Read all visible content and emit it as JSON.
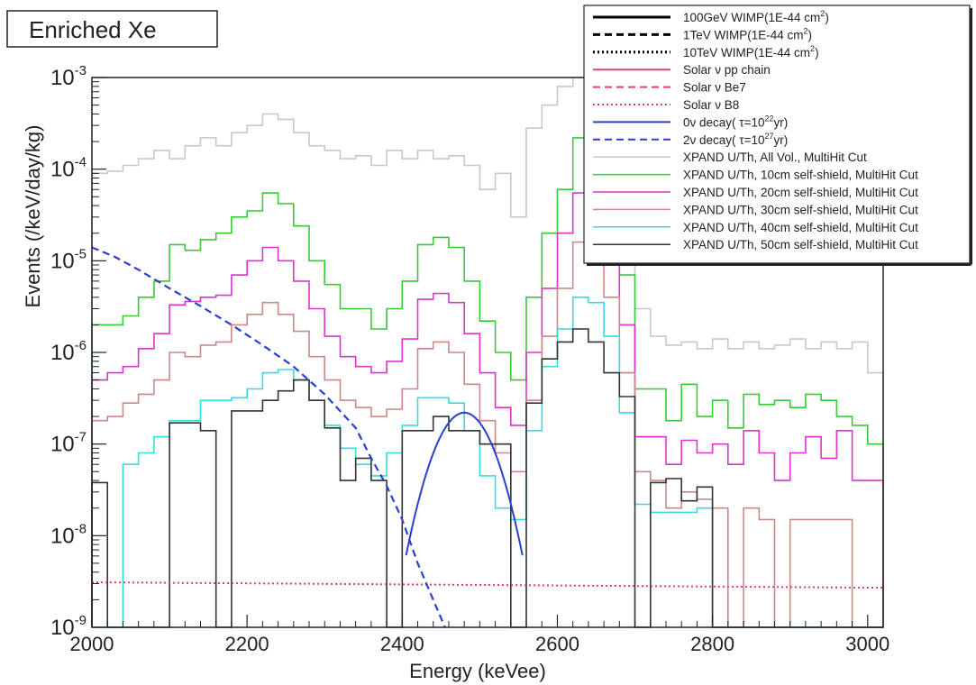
{
  "chart_data": {
    "type": "line",
    "title": "Enriched Xe",
    "xlabel": "Energy (keVee)",
    "ylabel": "Events (/keV/day/kg)",
    "xlim": [
      2000,
      3020
    ],
    "ylim": [
      1e-09,
      0.001
    ],
    "yscale": "log",
    "grid": false,
    "legend_position": "top-right",
    "x_ticks": [
      2000,
      2200,
      2400,
      2600,
      2800,
      3000
    ],
    "x_tick_labels": [
      "2000",
      "2200",
      "2400",
      "2600",
      "2800",
      "3000"
    ],
    "y_ticks": [
      1e-09,
      1e-08,
      1e-07,
      1e-06,
      1e-05,
      0.0001,
      0.001
    ],
    "y_tick_exponents": [
      "-9",
      "-8",
      "-7",
      "-6",
      "-5",
      "-4",
      "-3"
    ],
    "y_tick_base": "10",
    "legend": [
      {
        "label": "100GeV WIMP(1E-44 cm",
        "sup": "2",
        "tail": ")",
        "color": "#000000",
        "style": "solid",
        "width": 3
      },
      {
        "label": "1TeV WIMP(1E-44 cm",
        "sup": "2",
        "tail": ")",
        "color": "#000000",
        "style": "dashed",
        "width": 3
      },
      {
        "label": "10TeV WIMP(1E-44 cm",
        "sup": "2",
        "tail": ")",
        "color": "#000000",
        "style": "dotted",
        "width": 3
      },
      {
        "label": "Solar  ν pp chain",
        "sup": "",
        "tail": "",
        "color": "#e0406a",
        "style": "solid",
        "width": 2
      },
      {
        "label": "Solar  ν Be7",
        "sup": "",
        "tail": "",
        "color": "#e0406a",
        "style": "dashed",
        "width": 2
      },
      {
        "label": "Solar  ν B8",
        "sup": "",
        "tail": "",
        "color": "#e0406a",
        "style": "dotted",
        "width": 2
      },
      {
        "label": "0ν decay( τ=10",
        "sup": "22",
        "tail": "yr)",
        "color": "#2a3fd0",
        "style": "solid",
        "width": 2
      },
      {
        "label": "2ν decay( τ=10",
        "sup": "27",
        "tail": "yr)",
        "color": "#2a3fd0",
        "style": "dashed",
        "width": 2
      },
      {
        "label": "XPAND U/Th, All Vol., MultiHit Cut",
        "sup": "",
        "tail": "",
        "color": "#c8c8c8",
        "style": "solid",
        "width": 1.5
      },
      {
        "label": "XPAND U/Th, 10cm self-shield, MultiHit Cut",
        "sup": "",
        "tail": "",
        "color": "#33cc33",
        "style": "solid",
        "width": 1.5
      },
      {
        "label": "XPAND U/Th, 20cm self-shield, MultiHit Cut",
        "sup": "",
        "tail": "",
        "color": "#dd33cc",
        "style": "solid",
        "width": 1.5
      },
      {
        "label": "XPAND U/Th, 30cm self-shield, MultiHit Cut",
        "sup": "",
        "tail": "",
        "color": "#cc8888",
        "style": "solid",
        "width": 1.5
      },
      {
        "label": "XPAND U/Th, 40cm self-shield, MultiHit Cut",
        "sup": "",
        "tail": "",
        "color": "#33dddd",
        "style": "solid",
        "width": 1.5
      },
      {
        "label": "XPAND U/Th, 50cm self-shield, MultiHit Cut",
        "sup": "",
        "tail": "",
        "color": "#333333",
        "style": "solid",
        "width": 1.5
      }
    ],
    "bin_edges": [
      2000,
      2020,
      2040,
      2060,
      2080,
      2100,
      2120,
      2140,
      2160,
      2180,
      2200,
      2220,
      2240,
      2260,
      2280,
      2300,
      2320,
      2340,
      2360,
      2380,
      2400,
      2420,
      2440,
      2460,
      2480,
      2500,
      2520,
      2540,
      2560,
      2580,
      2600,
      2620,
      2640,
      2660,
      2680,
      2700,
      2720,
      2740,
      2760,
      2780,
      2800,
      2820,
      2840,
      2860,
      2880,
      2900,
      2920,
      2940,
      2960,
      2980,
      3000,
      3020
    ],
    "series": [
      {
        "name": "XPAND U/Th, All Vol., MultiHit Cut",
        "color": "#c8c8c8",
        "kind": "step",
        "values": [
          9e-05,
          9.5e-05,
          0.00011,
          0.00013,
          0.00016,
          0.00013,
          0.00018,
          0.00022,
          0.00018,
          0.00025,
          0.0003,
          0.0004,
          0.00035,
          0.00025,
          0.00018,
          0.00016,
          0.00013,
          0.00014,
          0.00011,
          0.00016,
          0.00013,
          0.00016,
          0.00013,
          0.00014,
          0.00011,
          6e-05,
          9e-05,
          3e-05,
          0.00028,
          0.0005,
          0.0008,
          0.001,
          0.0008,
          0.0005,
          1e-05,
          3e-06,
          1.5e-06,
          1.2e-06,
          1.3e-06,
          1.1e-06,
          1.4e-06,
          1.1e-06,
          1.3e-06,
          1.1e-06,
          1.2e-06,
          1.4e-06,
          1.1e-06,
          1.3e-06,
          1.1e-06,
          1.3e-06,
          6e-07
        ]
      },
      {
        "name": "XPAND U/Th, 10cm self-shield, MultiHit Cut",
        "color": "#33cc33",
        "kind": "step",
        "values": [
          2e-06,
          2e-06,
          2.5e-06,
          4e-06,
          6e-06,
          1.5e-05,
          1.3e-05,
          1.7e-05,
          2e-05,
          3e-05,
          3.5e-05,
          5.5e-05,
          4.2e-05,
          2.4e-05,
          1e-05,
          5.5e-06,
          3e-06,
          3e-06,
          1.8e-06,
          3e-06,
          6e-06,
          1.5e-05,
          1.8e-05,
          1.4e-05,
          6e-06,
          2.2e-06,
          1e-06,
          5e-07,
          4e-06,
          2e-05,
          6e-05,
          0.00022,
          0.00015,
          5e-05,
          7e-06,
          4e-07,
          4e-07,
          1.8e-07,
          4.5e-07,
          2e-07,
          3e-07,
          1.5e-07,
          3.5e-07,
          2.7e-07,
          3e-07,
          2.5e-07,
          3.5e-07,
          3e-07,
          2e-07,
          1.6e-07,
          1e-07
        ]
      },
      {
        "name": "XPAND U/Th, 20cm self-shield, MultiHit Cut",
        "color": "#dd33cc",
        "kind": "step",
        "values": [
          5e-07,
          6e-07,
          7e-07,
          1.1e-06,
          1.6e-06,
          3.3e-06,
          3.6e-06,
          4e-06,
          4.2e-06,
          7e-06,
          1e-05,
          1.4e-05,
          1e-05,
          6e-06,
          3e-06,
          1.5e-06,
          9e-07,
          7e-07,
          6e-07,
          8e-07,
          1.4e-06,
          3.8e-06,
          4.4e-06,
          3.5e-06,
          1.6e-06,
          6e-07,
          2.5e-07,
          1.6e-07,
          1e-06,
          5e-06,
          2e-05,
          5.5e-05,
          4e-05,
          1.4e-05,
          2e-06,
          1.2e-07,
          1.2e-07,
          6e-08,
          1.1e-07,
          8e-08,
          1e-07,
          6e-08,
          1.4e-07,
          8e-08,
          4e-08,
          8e-08,
          1.2e-07,
          7e-08,
          1.4e-07,
          4e-08,
          4e-08
        ]
      },
      {
        "name": "XPAND U/Th, 30cm self-shield, MultiHit Cut",
        "color": "#cc8888",
        "kind": "step",
        "values": [
          1.8e-07,
          2e-07,
          2.8e-07,
          3.5e-07,
          5e-07,
          1e-06,
          9e-07,
          1.2e-06,
          1.3e-06,
          2e-06,
          2.6e-06,
          3.5e-06,
          2.6e-06,
          1.7e-06,
          9e-07,
          5e-07,
          3e-07,
          2.5e-07,
          2e-07,
          2.4e-07,
          4e-07,
          1.1e-06,
          1.3e-06,
          1e-06,
          4.5e-07,
          1.8e-07,
          8e-08,
          5e-08,
          3e-07,
          1.5e-06,
          5e-06,
          1.6e-05,
          1.2e-05,
          4e-06,
          6e-07,
          5e-08,
          4e-08,
          2e-08,
          3e-08,
          2.5e-08,
          2e-08,
          1e-09,
          2e-08,
          1.5e-08,
          1e-09,
          1.5e-08,
          1.5e-08,
          1.5e-08,
          1.5e-08,
          1e-09,
          1e-09
        ]
      },
      {
        "name": "XPAND U/Th, 40cm self-shield, MultiHit Cut",
        "color": "#33dddd",
        "kind": "step",
        "values": [
          1e-09,
          1e-09,
          6e-08,
          8e-08,
          1.2e-07,
          1.8e-07,
          1.8e-07,
          3e-07,
          3e-07,
          3.2e-07,
          4e-07,
          6e-07,
          6.5e-07,
          5e-07,
          3e-07,
          1.6e-07,
          9e-08,
          6e-08,
          4.5e-08,
          8e-08,
          1.6e-07,
          3.2e-07,
          3.2e-07,
          2.8e-07,
          1.4e-07,
          4.5e-08,
          2e-08,
          1.5e-08,
          1.4e-07,
          7e-07,
          1.8e-06,
          4e-06,
          3.5e-06,
          1.5e-06,
          2.2e-07,
          2.2e-08,
          1.8e-08,
          1.8e-08,
          1.8e-08,
          2e-08,
          1e-09,
          1e-09,
          1e-09,
          1e-09,
          1e-09,
          1e-09,
          1e-09,
          1e-09,
          1e-09,
          1e-09,
          1e-09
        ]
      },
      {
        "name": "XPAND U/Th, 50cm self-shield, MultiHit Cut",
        "color": "#333333",
        "kind": "step",
        "values": [
          3.8e-08,
          1e-09,
          1e-09,
          1e-09,
          1e-09,
          1.7e-07,
          1.7e-07,
          1.4e-07,
          1e-09,
          2.3e-07,
          2.3e-07,
          3e-07,
          3.8e-07,
          5e-07,
          3e-07,
          1.5e-07,
          4e-08,
          7e-08,
          4e-08,
          1e-09,
          1.4e-07,
          1.4e-07,
          2e-07,
          1.4e-07,
          1.4e-07,
          1e-07,
          1e-07,
          1e-09,
          2.8e-07,
          8.5e-07,
          1.3e-06,
          1.8e-06,
          1.3e-06,
          6e-07,
          3.3e-07,
          1e-09,
          3.8e-08,
          4.2e-08,
          2.4e-08,
          3.4e-08,
          1e-09,
          1e-09,
          1e-09,
          1e-09,
          1e-09,
          1e-09,
          1e-09,
          1e-09,
          1e-09,
          1e-09,
          1e-09
        ]
      },
      {
        "name": "Solar  ν B8",
        "color": "#e0406a",
        "kind": "dotted",
        "x": [
          2000,
          3020
        ],
        "y": [
          3.1e-09,
          2.7e-09
        ]
      },
      {
        "name": "2ν decay( τ=10^27 yr)",
        "color": "#2a3fd0",
        "kind": "dashed",
        "x": [
          2000,
          2030,
          2060,
          2100,
          2140,
          2180,
          2220,
          2260,
          2300,
          2340,
          2360,
          2380,
          2400,
          2420,
          2440,
          2455
        ],
        "y": [
          1.4e-05,
          1.1e-05,
          8e-06,
          5e-06,
          3.2e-06,
          2e-06,
          1.2e-06,
          7e-07,
          3.5e-07,
          1.5e-07,
          7e-08,
          3.5e-08,
          1.5e-08,
          5e-09,
          2e-09,
          1e-09
        ]
      },
      {
        "name": "0ν decay( τ=10^22 yr)",
        "color": "#2a3fd0",
        "kind": "solid",
        "gauss": {
          "mean": 2480,
          "sigma": 28,
          "peak": 2.2e-07,
          "xmin": 2405,
          "xmax": 2555
        }
      }
    ]
  }
}
